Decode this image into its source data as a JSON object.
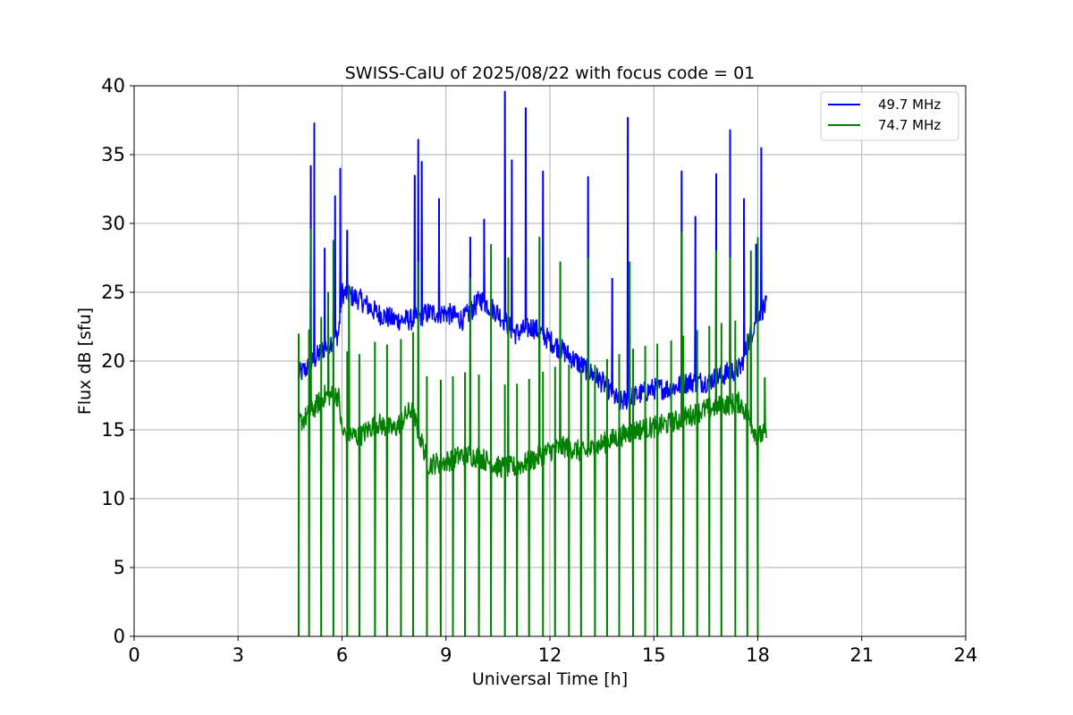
{
  "chart_data": {
    "type": "line",
    "title": "SWISS-CalU of 2025/08/22 with focus code = 01",
    "xlabel": "Universal Time [h]",
    "ylabel": "Flux dB [sfu]",
    "xlim": [
      0,
      24
    ],
    "ylim": [
      0,
      40
    ],
    "xticks": [
      0,
      3,
      6,
      9,
      12,
      15,
      18,
      21,
      24
    ],
    "yticks": [
      0,
      5,
      10,
      15,
      20,
      25,
      30,
      35,
      40
    ],
    "grid": true,
    "legend_position": "top-right",
    "series": [
      {
        "name": "49.7 MHz",
        "color": "#0000ff",
        "x": [
          4.75,
          5.0,
          5.5,
          5.9,
          6.0,
          6.5,
          7.0,
          7.5,
          8.0,
          8.5,
          9.0,
          9.5,
          10.0,
          10.5,
          11.0,
          11.5,
          12.0,
          12.5,
          13.0,
          13.5,
          14.0,
          14.5,
          15.0,
          15.5,
          16.0,
          16.5,
          17.0,
          17.5,
          18.0,
          18.25
        ],
        "values": [
          19.0,
          19.5,
          21.0,
          22.0,
          25.0,
          24.5,
          23.5,
          23.0,
          23.0,
          23.5,
          23.5,
          23.0,
          24.5,
          23.5,
          22.0,
          22.5,
          21.5,
          20.5,
          19.5,
          18.5,
          17.0,
          17.5,
          18.0,
          18.0,
          18.5,
          18.5,
          19.0,
          19.5,
          23.5,
          24.0
        ],
        "peaks": [
          {
            "x": 5.1,
            "y": 34.2
          },
          {
            "x": 5.2,
            "y": 37.3
          },
          {
            "x": 5.5,
            "y": 28.2
          },
          {
            "x": 5.8,
            "y": 32.0
          },
          {
            "x": 5.95,
            "y": 34.0
          },
          {
            "x": 6.15,
            "y": 29.5
          },
          {
            "x": 8.1,
            "y": 33.5
          },
          {
            "x": 8.2,
            "y": 36.1
          },
          {
            "x": 8.3,
            "y": 34.5
          },
          {
            "x": 8.8,
            "y": 31.8
          },
          {
            "x": 9.7,
            "y": 29.0
          },
          {
            "x": 10.1,
            "y": 30.3
          },
          {
            "x": 10.7,
            "y": 39.6
          },
          {
            "x": 10.9,
            "y": 34.6
          },
          {
            "x": 11.3,
            "y": 38.4
          },
          {
            "x": 11.8,
            "y": 33.8
          },
          {
            "x": 13.1,
            "y": 33.4
          },
          {
            "x": 13.8,
            "y": 26.0
          },
          {
            "x": 14.25,
            "y": 37.7
          },
          {
            "x": 15.8,
            "y": 33.8
          },
          {
            "x": 16.2,
            "y": 30.5
          },
          {
            "x": 16.8,
            "y": 33.6
          },
          {
            "x": 17.2,
            "y": 36.8
          },
          {
            "x": 17.6,
            "y": 31.8
          },
          {
            "x": 17.95,
            "y": 28.5
          },
          {
            "x": 18.1,
            "y": 35.5
          }
        ]
      },
      {
        "name": "74.7 MHz",
        "color": "#008000",
        "x": [
          4.75,
          5.0,
          5.5,
          5.9,
          6.0,
          6.5,
          7.0,
          7.5,
          8.0,
          8.5,
          9.0,
          9.5,
          10.0,
          10.5,
          11.0,
          11.5,
          12.0,
          12.5,
          13.0,
          13.5,
          14.0,
          14.5,
          15.0,
          15.5,
          16.0,
          16.5,
          17.0,
          17.5,
          18.0,
          18.25
        ],
        "values": [
          15.5,
          16.0,
          17.5,
          17.5,
          14.8,
          14.5,
          15.5,
          15.0,
          16.5,
          12.5,
          12.7,
          13.2,
          13.0,
          12.3,
          12.3,
          12.8,
          13.5,
          13.8,
          13.3,
          14.0,
          14.5,
          15.0,
          15.2,
          15.5,
          16.0,
          16.5,
          16.8,
          17.0,
          14.5,
          14.8
        ],
        "peaks": [
          {
            "x": 4.75,
            "y": 22.0
          },
          {
            "x": 5.05,
            "y": 22.3
          },
          {
            "x": 5.1,
            "y": 29.6
          },
          {
            "x": 5.6,
            "y": 25.0
          },
          {
            "x": 5.75,
            "y": 28.8
          },
          {
            "x": 6.2,
            "y": 25.5
          },
          {
            "x": 8.2,
            "y": 27.2
          },
          {
            "x": 9.7,
            "y": 26.0
          },
          {
            "x": 10.3,
            "y": 28.5
          },
          {
            "x": 10.8,
            "y": 27.5
          },
          {
            "x": 11.7,
            "y": 29.0
          },
          {
            "x": 12.3,
            "y": 27.2
          },
          {
            "x": 13.1,
            "y": 27.5
          },
          {
            "x": 14.3,
            "y": 27.2
          },
          {
            "x": 15.8,
            "y": 29.3
          },
          {
            "x": 16.8,
            "y": 28.0
          },
          {
            "x": 17.2,
            "y": 27.5
          },
          {
            "x": 17.8,
            "y": 28.0
          },
          {
            "x": 18.0,
            "y": 29.0
          },
          {
            "x": 18.2,
            "y": 18.8
          }
        ],
        "dropouts": [
          4.75,
          5.05,
          5.4,
          5.75,
          6.15,
          6.5,
          6.95,
          7.3,
          7.7,
          8.05,
          8.45,
          8.85,
          9.2,
          9.55,
          9.95,
          10.3,
          10.7,
          11.05,
          11.4,
          11.8,
          12.15,
          12.55,
          12.9,
          13.3,
          13.65,
          14.0,
          14.4,
          14.75,
          15.1,
          15.5,
          15.85,
          16.25,
          16.6,
          16.95,
          17.35,
          17.7,
          18.0
        ]
      }
    ]
  }
}
